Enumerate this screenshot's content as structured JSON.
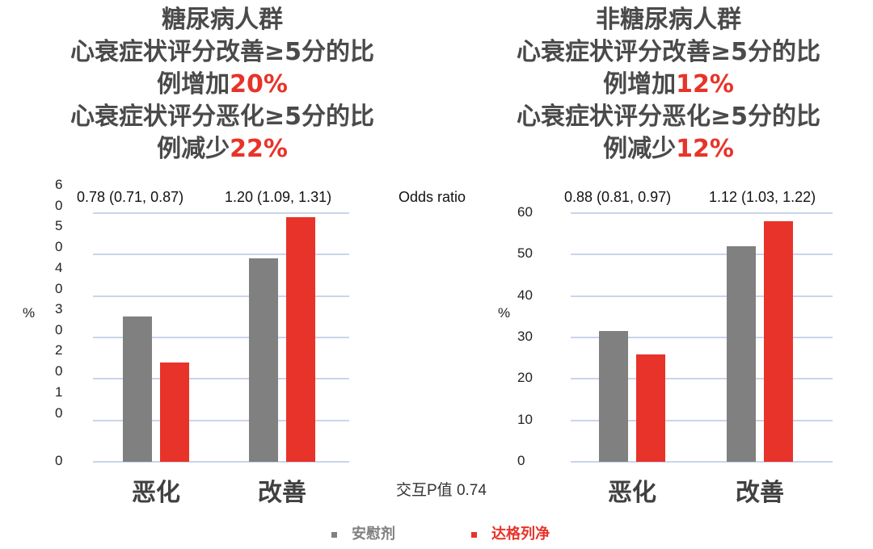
{
  "colors": {
    "placebo": "#808080",
    "drug": "#e8332a",
    "grid": "#c9d5ea"
  },
  "legend": {
    "placebo": "安慰剂",
    "drug": "达格列净"
  },
  "odds_ratio_label": "Odds ratio",
  "interaction_label": "交互P值 0.74",
  "y_unit": "%",
  "categories": [
    "恶化",
    "改善"
  ],
  "left_title": [
    "糖尿病人群",
    "心衰症状评分改善≥5分的比",
    "例增加",
    "20%",
    "心衰症状评分恶化≥5分的比",
    "例减少",
    "22%"
  ],
  "right_title": [
    "非糖尿病人群",
    "心衰症状评分改善≥5分的比",
    "例增加",
    "12%",
    "心衰症状评分恶化≥5分的比",
    "例减少",
    "12%"
  ],
  "chart_data": [
    {
      "type": "bar",
      "categories": [
        "恶化",
        "改善"
      ],
      "ylim": [
        0,
        60
      ],
      "yticks": [
        "0",
        "1\n0",
        "2\n0",
        "3\n0",
        "4\n0",
        "5\n0",
        "6\n0"
      ],
      "ylabel": "%",
      "odds_ratios": [
        "0.78 (0.71, 0.87)",
        "1.20 (1.09, 1.31)"
      ],
      "series": [
        {
          "name": "安慰剂",
          "values": [
            35,
            49
          ]
        },
        {
          "name": "达格列净",
          "values": [
            24,
            59
          ]
        }
      ]
    },
    {
      "type": "bar",
      "categories": [
        "恶化",
        "改善"
      ],
      "ylim": [
        0,
        60
      ],
      "yticks": [
        "0",
        "10",
        "20",
        "30",
        "40",
        "50",
        "60"
      ],
      "ylabel": "%",
      "odds_ratios": [
        "0.88 (0.81, 0.97)",
        "1.12 (1.03, 1.22)"
      ],
      "series": [
        {
          "name": "安慰剂",
          "values": [
            31.5,
            52
          ]
        },
        {
          "name": "达格列净",
          "values": [
            26,
            58
          ]
        }
      ]
    }
  ]
}
